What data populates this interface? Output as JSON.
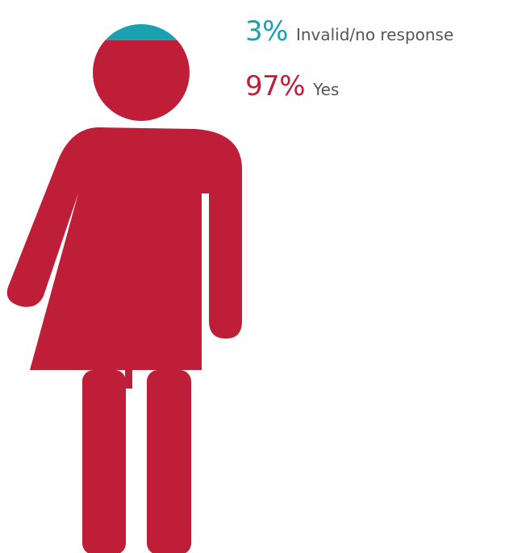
{
  "chart_data": {
    "type": "pictograph",
    "fill_direction": "top-down",
    "series": [
      {
        "name": "Invalid/no response",
        "value": 3,
        "value_label": "3%",
        "color": "#1aa1b0"
      },
      {
        "name": "Yes",
        "value": 97,
        "value_label": "97%",
        "color": "#be1e37"
      }
    ],
    "unit": "%",
    "total": 100
  }
}
